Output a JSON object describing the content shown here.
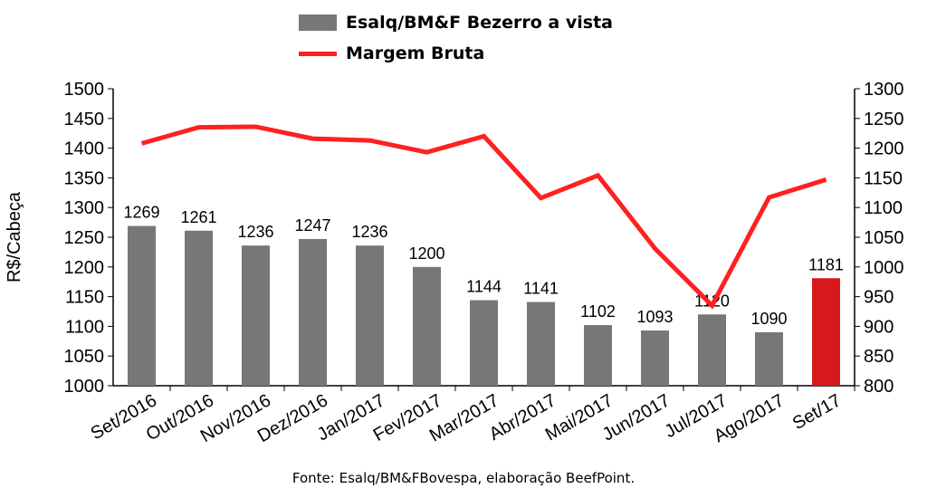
{
  "chart_data": {
    "type": "bar+line",
    "categories": [
      "Set/2016",
      "Out/2016",
      "Nov/2016",
      "Dez/2016",
      "Jan/2017",
      "Fev/2017",
      "Mar/2017",
      "Abr/2017",
      "Mai/2017",
      "Jun/2017",
      "Jul/2017",
      "Ago/2017",
      "Set/17"
    ],
    "series": [
      {
        "name": "Esalq/BM&F Bezerro a vista",
        "type": "bar",
        "axis": "left",
        "values": [
          1269,
          1261,
          1236,
          1247,
          1236,
          1200,
          1144,
          1141,
          1102,
          1093,
          1120,
          1090,
          1181
        ],
        "color": "#777777",
        "highlight_last_color": "#d7191c"
      },
      {
        "name": "Margem Bruta",
        "type": "line",
        "axis": "right",
        "values": [
          1208,
          1235,
          1236,
          1216,
          1213,
          1193,
          1220,
          1116,
          1154,
          1031,
          935,
          1117,
          1147
        ],
        "color": "#ff2020"
      }
    ],
    "ylabel": "R$/Cabeça",
    "ylim": [
      1000,
      1500
    ],
    "y_ticks": [
      "1000",
      "1050",
      "1100",
      "1150",
      "1200",
      "1250",
      "1300",
      "1350",
      "1400",
      "1450",
      "1500"
    ],
    "y2lim": [
      800,
      1300
    ],
    "y2_ticks": [
      "800",
      "850",
      "900",
      "950",
      "1000",
      "1050",
      "1100",
      "1150",
      "1200",
      "1250",
      "1300"
    ],
    "legend_position": "top",
    "grid": false
  },
  "legend": {
    "bar_label": "Esalq/BM&F Bezerro a vista",
    "line_label": "Margem Bruta"
  },
  "source": "Fonte: Esalq/BM&FBovespa, elaboração BeefPoint."
}
